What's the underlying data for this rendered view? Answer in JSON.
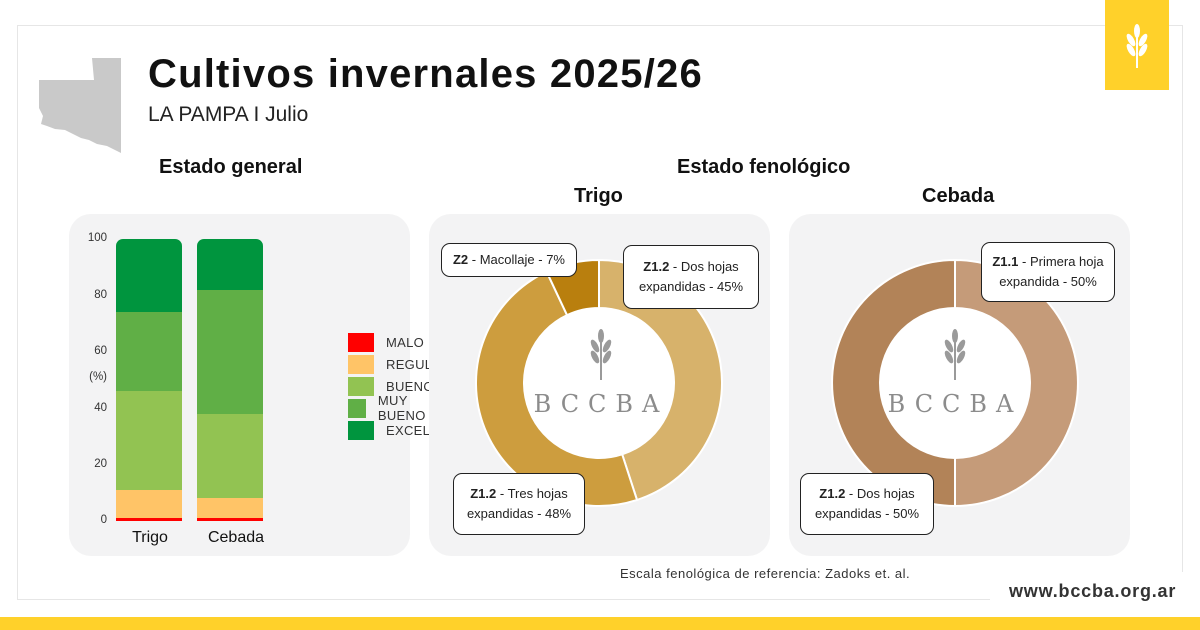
{
  "header": {
    "title": "Cultivos invernales 2025/26",
    "subtitle": "LA PAMPA I Julio"
  },
  "sections": {
    "general": "Estado general",
    "phenology": "Estado fenológico",
    "wheat": "Trigo",
    "barley": "Cebada"
  },
  "watermark": "BCCBA",
  "footer": {
    "reference": "Escala fenológica de referencia: Zadoks et. al.",
    "website": "www.bccba.org.ar"
  },
  "colors": {
    "brand_yellow": "#ffd12a",
    "panel_bg": "#f3f3f4",
    "malo": "#ff0000",
    "regular": "#ffc467",
    "bueno": "#92c352",
    "muy_bueno": "#60af46",
    "excelente": "#00953e"
  },
  "chart_data": [
    {
      "type": "bar",
      "stacked": true,
      "title": "Estado general",
      "categories": [
        "Trigo",
        "Cebada"
      ],
      "ylabel": "(%)",
      "ylim": [
        0,
        100
      ],
      "yticks": [
        "0",
        "20",
        "40",
        "60",
        "80",
        "100"
      ],
      "legend_position": "right",
      "series": [
        {
          "name": "MALO",
          "color": "#ff0000",
          "values": [
            1,
            1
          ]
        },
        {
          "name": "REGULAR",
          "color": "#ffc467",
          "values": [
            10,
            7
          ]
        },
        {
          "name": "BUENO",
          "color": "#92c352",
          "values": [
            35,
            30
          ]
        },
        {
          "name": "MUY BUENO",
          "color": "#60af46",
          "values": [
            28,
            44
          ]
        },
        {
          "name": "EXCELENTE",
          "color": "#00953e",
          "values": [
            26,
            18
          ]
        }
      ]
    },
    {
      "type": "pie",
      "donut": true,
      "title": "Trigo",
      "slices": [
        {
          "code": "Z1.2",
          "label": "Dos hojas expandidas",
          "value": 45,
          "text": "45%",
          "color": "#d7b26b"
        },
        {
          "code": "Z1.2",
          "label": "Tres hojas expandidas",
          "value": 48,
          "text": "48%",
          "color": "#cd9d3e"
        },
        {
          "code": "Z2",
          "label": "Macollaje",
          "value": 7,
          "text": "7%",
          "color": "#b97f0e"
        }
      ]
    },
    {
      "type": "pie",
      "donut": true,
      "title": "Cebada",
      "slices": [
        {
          "code": "Z1.1",
          "label": "Primera hoja expandida",
          "value": 50,
          "text": "50%",
          "color": "#c59b79"
        },
        {
          "code": "Z1.2",
          "label": "Dos hojas expandidas",
          "value": 50,
          "text": "50%",
          "color": "#b28358"
        }
      ]
    }
  ]
}
